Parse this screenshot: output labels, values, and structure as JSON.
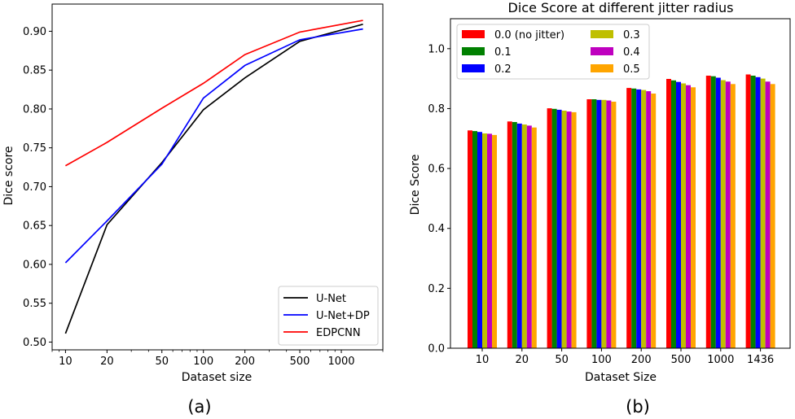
{
  "chart_data": [
    {
      "type": "line",
      "panel_label": "(a)",
      "title": "",
      "xlabel": "Dataset size",
      "ylabel": "Dice score",
      "xscale": "log",
      "xlim": [
        8,
        2000
      ],
      "ylim": [
        0.49,
        0.935
      ],
      "x": [
        10,
        20,
        50,
        100,
        200,
        500,
        1436
      ],
      "xticks": [
        10,
        20,
        50,
        100,
        200,
        500,
        1000
      ],
      "xtick_labels": [
        "10",
        "20",
        "50",
        "100",
        "200",
        "500",
        "1000"
      ],
      "yticks": [
        0.5,
        0.55,
        0.6,
        0.65,
        0.7,
        0.75,
        0.8,
        0.85,
        0.9
      ],
      "ytick_labels": [
        "0.50",
        "0.55",
        "0.60",
        "0.65",
        "0.70",
        "0.75",
        "0.80",
        "0.85",
        "0.90"
      ],
      "series": [
        {
          "name": "U-Net",
          "color": "#000000",
          "values": [
            0.511,
            0.651,
            0.731,
            0.799,
            0.84,
            0.887,
            0.909
          ]
        },
        {
          "name": "U-Net+DP",
          "color": "#0000ff",
          "values": [
            0.602,
            0.656,
            0.729,
            0.814,
            0.856,
            0.889,
            0.903
          ]
        },
        {
          "name": "EDPCNN",
          "color": "#ff0000",
          "values": [
            0.727,
            0.757,
            0.801,
            0.833,
            0.87,
            0.899,
            0.914
          ]
        }
      ],
      "legend": "bottom-right",
      "grid": false
    },
    {
      "type": "bar",
      "panel_label": "(b)",
      "title": "Dice Score at different jitter radius",
      "xlabel": "Dataset Size",
      "ylabel": "Dice Score",
      "ylim": [
        0,
        1.1
      ],
      "yticks": [
        0.0,
        0.2,
        0.4,
        0.6,
        0.8,
        1.0
      ],
      "ytick_labels": [
        "0.0",
        "0.2",
        "0.4",
        "0.6",
        "0.8",
        "1.0"
      ],
      "categories": [
        "10",
        "20",
        "50",
        "100",
        "200",
        "500",
        "1000",
        "1436"
      ],
      "series": [
        {
          "name": "0.0 (no jitter)",
          "color": "#ff0000",
          "values": [
            0.727,
            0.757,
            0.801,
            0.831,
            0.869,
            0.899,
            0.91,
            0.914
          ]
        },
        {
          "name": "0.1",
          "color": "#008000",
          "values": [
            0.725,
            0.755,
            0.799,
            0.831,
            0.867,
            0.894,
            0.908,
            0.91
          ]
        },
        {
          "name": "0.2",
          "color": "#0000ff",
          "values": [
            0.722,
            0.75,
            0.796,
            0.829,
            0.864,
            0.889,
            0.903,
            0.905
          ]
        },
        {
          "name": "0.3",
          "color": "#bfbf00",
          "values": [
            0.717,
            0.747,
            0.793,
            0.829,
            0.862,
            0.884,
            0.895,
            0.9
          ]
        },
        {
          "name": "0.4",
          "color": "#bf00bf",
          "values": [
            0.716,
            0.743,
            0.79,
            0.827,
            0.858,
            0.878,
            0.89,
            0.89
          ]
        },
        {
          "name": "0.5",
          "color": "#ffa500",
          "values": [
            0.712,
            0.737,
            0.788,
            0.823,
            0.85,
            0.871,
            0.882,
            0.882
          ]
        }
      ],
      "legend": "top-left",
      "grid": false
    }
  ]
}
